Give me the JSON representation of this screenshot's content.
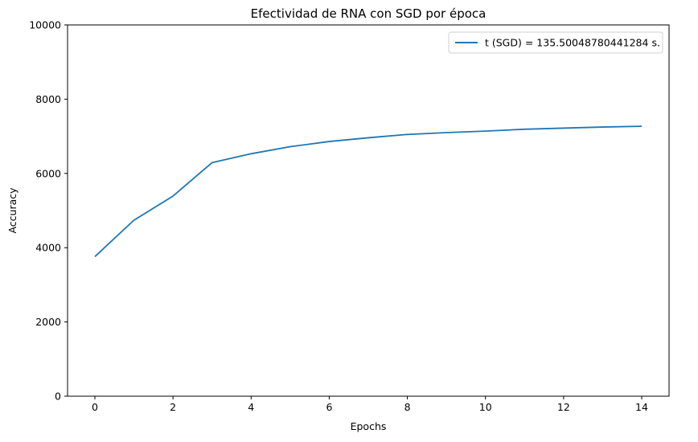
{
  "chart_data": {
    "type": "line",
    "title": "Efectividad de RNA con SGD por época",
    "xlabel": "Epochs",
    "ylabel": "Accuracy",
    "xlim": [
      -0.7,
      14.7
    ],
    "ylim": [
      0,
      10000
    ],
    "xticks": [
      0,
      2,
      4,
      6,
      8,
      10,
      12,
      14
    ],
    "yticks": [
      0,
      2000,
      4000,
      6000,
      8000,
      10000
    ],
    "grid": false,
    "legend_position": "top-right",
    "series": [
      {
        "name": "t (SGD) = 135.50048780441284 s.",
        "color": "#1f77b4",
        "x": [
          0,
          1,
          2,
          3,
          4,
          5,
          6,
          7,
          8,
          9,
          10,
          11,
          12,
          13,
          14
        ],
        "y": [
          3760,
          4740,
          5390,
          6290,
          6530,
          6720,
          6860,
          6960,
          7050,
          7100,
          7140,
          7190,
          7220,
          7250,
          7270
        ]
      }
    ]
  }
}
